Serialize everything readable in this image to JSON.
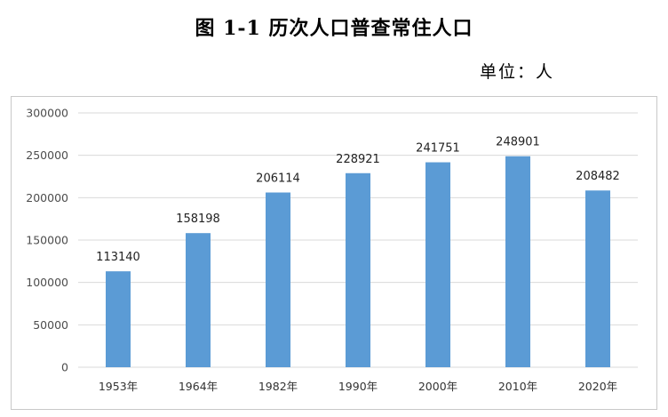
{
  "page": {
    "title": "图 1-1 历次人口普查常住人口",
    "unit": "单位：人"
  },
  "chart_data": {
    "type": "bar",
    "title": "图 1-1 历次人口普查常住人口",
    "ylabel": "单位：人",
    "categories": [
      "1953年",
      "1964年",
      "1982年",
      "1990年",
      "2000年",
      "2010年",
      "2020年"
    ],
    "values": [
      113140,
      158198,
      206114,
      228921,
      241751,
      248901,
      208482
    ],
    "data_labels": [
      "113140",
      "158198",
      "206114",
      "228921",
      "241751",
      "248901",
      "208482"
    ],
    "ylim": [
      0,
      300000
    ],
    "yticks": [
      0,
      50000,
      100000,
      150000,
      200000,
      250000,
      300000
    ],
    "ytick_labels": [
      "0",
      "50000",
      "100000",
      "150000",
      "200000",
      "250000",
      "300000"
    ],
    "grid": true,
    "legend": "none",
    "bar_color": "#5b9bd5",
    "grid_color": "#d9d9d9"
  }
}
